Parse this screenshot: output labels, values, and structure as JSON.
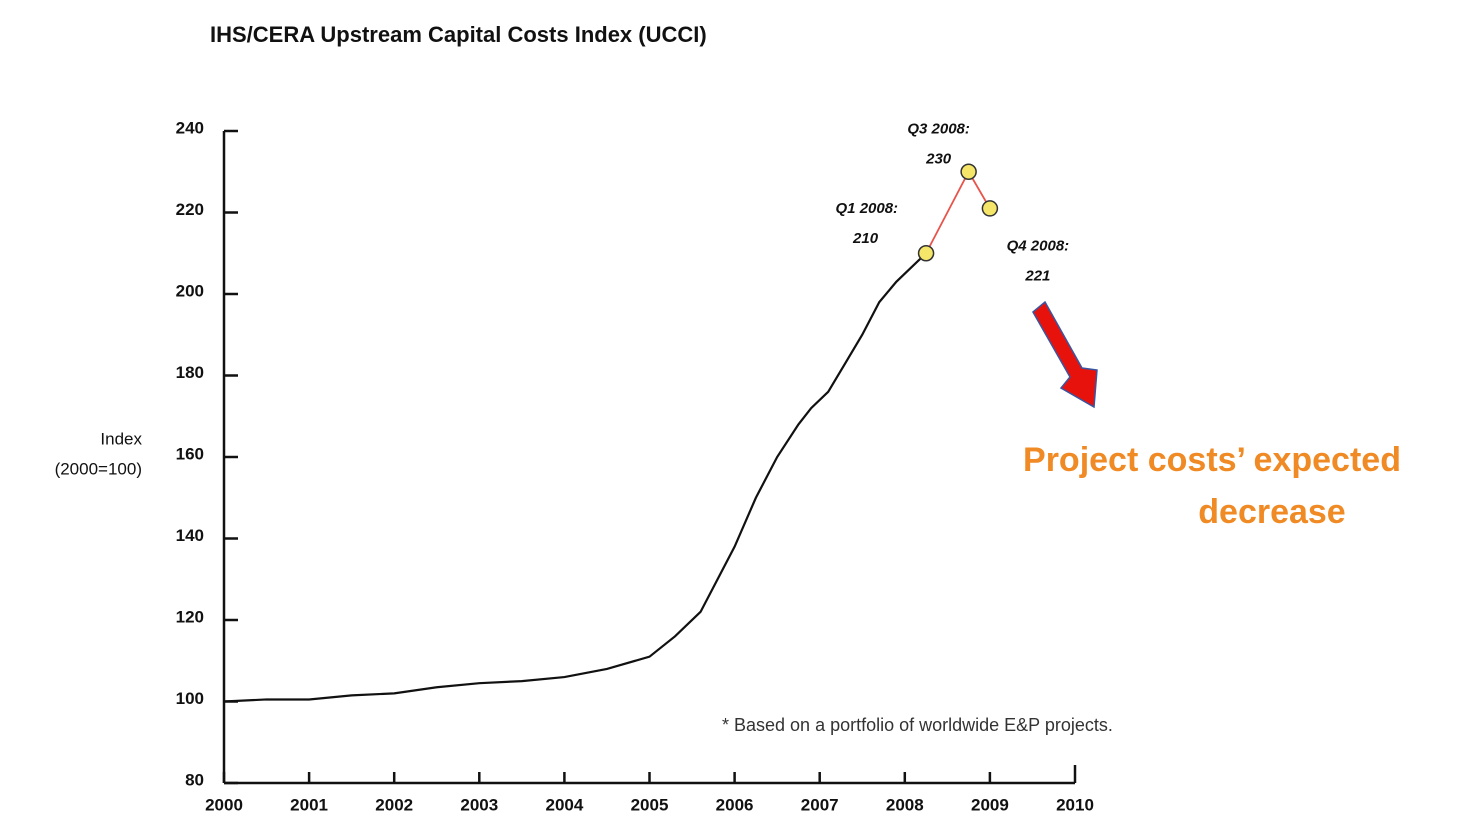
{
  "chart_data": {
    "type": "line",
    "title": "IHS/CERA Upstream Capital Costs Index (UCCI)",
    "y_label": [
      "Index",
      "(2000=100)"
    ],
    "xlim": [
      2000,
      2010
    ],
    "xticks": [
      2000,
      2001,
      2002,
      2003,
      2004,
      2005,
      2006,
      2007,
      2008,
      2009,
      2010
    ],
    "ylim": [
      80,
      240
    ],
    "yticks": [
      80,
      100,
      120,
      140,
      160,
      180,
      200,
      220,
      240
    ],
    "series": [
      {
        "color": "#111111",
        "x": [
          2000,
          2000.5,
          2001,
          2001.5,
          2002,
          2002.5,
          2003,
          2003.5,
          2004,
          2004.5,
          2005,
          2005.3,
          2005.6,
          2005.8,
          2006,
          2006.25,
          2006.5,
          2006.75,
          2006.9,
          2007.1,
          2007.3,
          2007.5,
          2007.7,
          2007.9,
          2008.25
        ],
        "values": [
          100,
          100.5,
          100.5,
          101.5,
          102,
          103.5,
          104.5,
          105,
          106,
          108,
          111,
          116,
          122,
          130,
          138,
          150,
          160,
          168,
          172,
          176,
          183,
          190,
          198,
          203,
          210
        ]
      },
      {
        "color": "#e8534a",
        "marker_color": "#f5e66a",
        "x": [
          2008.25,
          2008.75,
          2009
        ],
        "values": [
          210,
          230,
          221
        ],
        "point_labels": [
          "Q1 2008:",
          "Q3 2008:",
          "Q4 2008:"
        ]
      }
    ],
    "footnote": "* Based on a portfolio of worldwide E&P projects.",
    "callout": [
      "Project costs’ expected",
      "decrease"
    ],
    "callout_color": "#f08a24"
  }
}
